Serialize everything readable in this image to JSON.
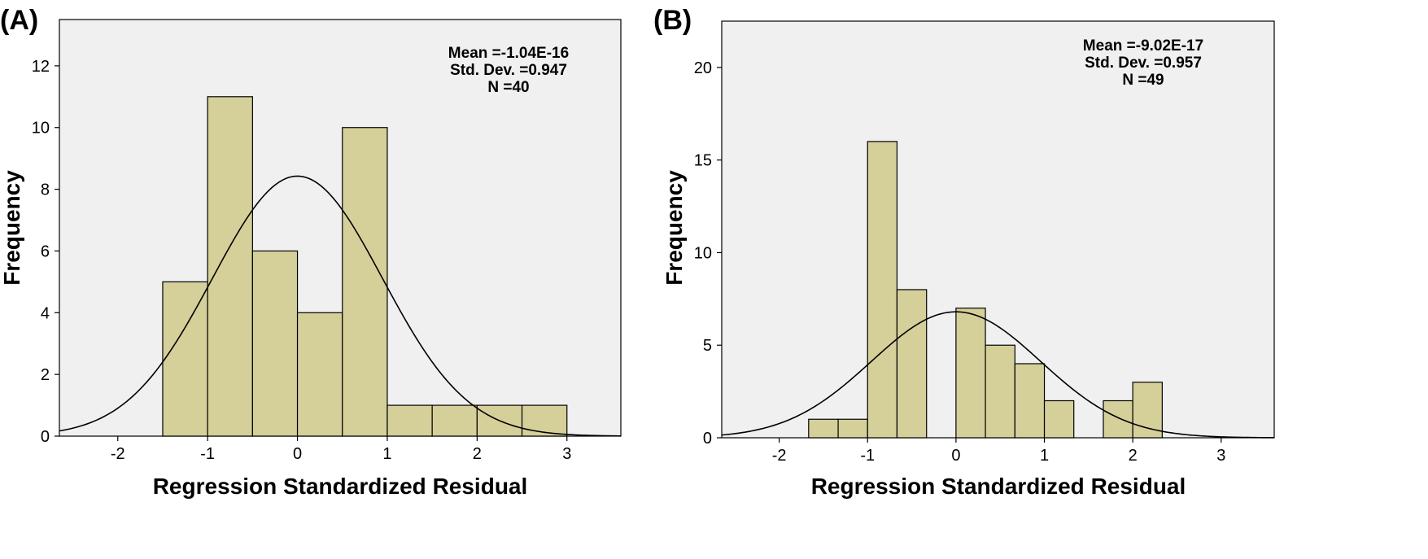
{
  "chart_data": [
    {
      "type": "bar",
      "panel_label": "(A)",
      "title": "",
      "xlabel": "Regression Standardized Residual",
      "ylabel": "Frequency",
      "xlim": [
        -2.65,
        3.6
      ],
      "ylim": [
        0,
        13.5
      ],
      "xticks": [
        -2,
        -1,
        0,
        1,
        2,
        3
      ],
      "yticks": [
        0,
        2,
        4,
        6,
        8,
        10,
        12
      ],
      "bins": [
        {
          "from": -1.5,
          "to": -1.0,
          "count": 5
        },
        {
          "from": -1.0,
          "to": -0.5,
          "count": 11
        },
        {
          "from": -0.5,
          "to": 0.0,
          "count": 6
        },
        {
          "from": 0.0,
          "to": 0.5,
          "count": 4
        },
        {
          "from": 0.5,
          "to": 1.0,
          "count": 10
        },
        {
          "from": 1.0,
          "to": 1.5,
          "count": 1
        },
        {
          "from": 1.5,
          "to": 2.0,
          "count": 1
        },
        {
          "from": 2.0,
          "to": 2.5,
          "count": 1
        },
        {
          "from": 2.5,
          "to": 3.0,
          "count": 1
        }
      ],
      "normal_curve": {
        "mean": 0,
        "sd": 0.947,
        "n": 40,
        "bin_width": 0.5
      },
      "stats": {
        "mean": "Mean =-1.04E-16",
        "std_dev": "Std. Dev. =0.947",
        "n": "N =40"
      },
      "colors": {
        "bar": "#d5d09a",
        "background": "#f0f0f0"
      }
    },
    {
      "type": "bar",
      "panel_label": "(B)",
      "title": "",
      "xlabel": "Regression Standardized Residual",
      "ylabel": "Frequency",
      "xlim": [
        -2.65,
        3.6
      ],
      "ylim": [
        0,
        22.5
      ],
      "xticks": [
        -2,
        -1,
        0,
        1,
        2,
        3
      ],
      "yticks": [
        0,
        5,
        10,
        15,
        20
      ],
      "bins": [
        {
          "from": -1.667,
          "to": -1.333,
          "count": 1
        },
        {
          "from": -1.333,
          "to": -1.0,
          "count": 1
        },
        {
          "from": -1.0,
          "to": -0.667,
          "count": 16
        },
        {
          "from": -0.667,
          "to": -0.333,
          "count": 8
        },
        {
          "from": -0.333,
          "to": 0.0,
          "count": 0
        },
        {
          "from": 0.0,
          "to": 0.333,
          "count": 7
        },
        {
          "from": 0.333,
          "to": 0.667,
          "count": 5
        },
        {
          "from": 0.667,
          "to": 1.0,
          "count": 4
        },
        {
          "from": 1.0,
          "to": 1.333,
          "count": 2
        },
        {
          "from": 1.333,
          "to": 1.667,
          "count": 0
        },
        {
          "from": 1.667,
          "to": 2.0,
          "count": 2
        },
        {
          "from": 2.0,
          "to": 2.333,
          "count": 3
        }
      ],
      "normal_curve": {
        "mean": 0,
        "sd": 0.957,
        "n": 49,
        "bin_width": 0.333
      },
      "stats": {
        "mean": "Mean =-9.02E-17",
        "std_dev": "Std. Dev. =0.957",
        "n": "N =49"
      },
      "colors": {
        "bar": "#d5d09a",
        "background": "#f0f0f0"
      }
    }
  ]
}
